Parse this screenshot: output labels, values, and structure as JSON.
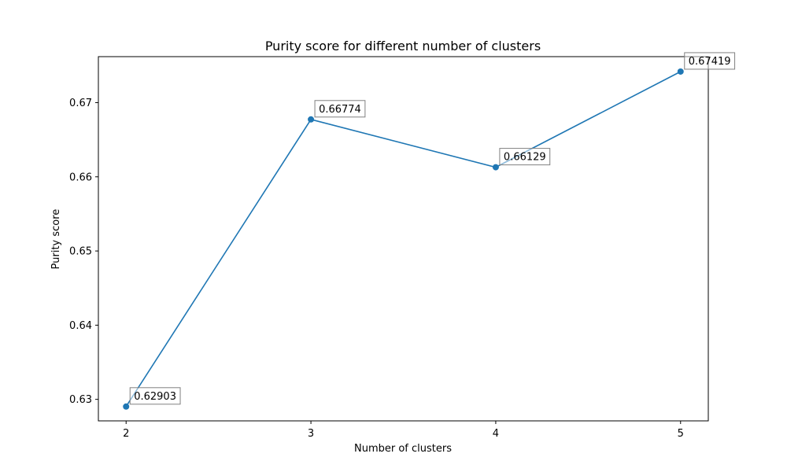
{
  "chart_data": {
    "type": "line",
    "title": "Purity score for different number of clusters",
    "xlabel": "Number of clusters",
    "ylabel": "Purity score",
    "x": [
      2,
      3,
      4,
      5
    ],
    "x_ticks": [
      "2",
      "3",
      "4",
      "5"
    ],
    "y_ticks": [
      "0.63",
      "0.64",
      "0.65",
      "0.66",
      "0.67"
    ],
    "series": [
      {
        "values": [
          0.62903,
          0.66774,
          0.66129,
          0.67419
        ],
        "labels": [
          "0.62903",
          "0.66774",
          "0.66129",
          "0.67419"
        ],
        "color": "#1f77b4"
      }
    ],
    "xlim": [
      1.85,
      5.15
    ],
    "ylim": [
      0.6271,
      0.6762
    ],
    "grid": false,
    "legend": "none"
  }
}
